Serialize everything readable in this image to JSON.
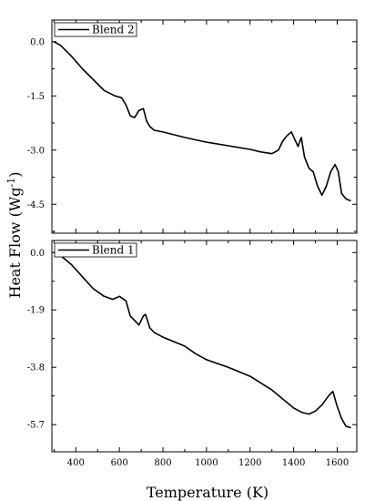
{
  "chart_data": [
    {
      "type": "line",
      "panel": "top",
      "series": [
        {
          "name": "Blend 2",
          "x": [
            300,
            330,
            380,
            430,
            480,
            530,
            580,
            610,
            630,
            650,
            670,
            690,
            710,
            725,
            740,
            760,
            800,
            900,
            1000,
            1100,
            1200,
            1250,
            1300,
            1330,
            1350,
            1370,
            1390,
            1405,
            1420,
            1435,
            1450,
            1470,
            1490,
            1510,
            1530,
            1550,
            1570,
            1590,
            1605,
            1620,
            1640,
            1660
          ],
          "y": [
            0.0,
            -0.1,
            -0.4,
            -0.75,
            -1.05,
            -1.35,
            -1.5,
            -1.55,
            -1.75,
            -2.05,
            -2.1,
            -1.9,
            -1.85,
            -2.2,
            -2.35,
            -2.45,
            -2.5,
            -2.65,
            -2.78,
            -2.88,
            -2.98,
            -3.05,
            -3.1,
            -3.0,
            -2.75,
            -2.6,
            -2.5,
            -2.7,
            -2.9,
            -2.65,
            -3.2,
            -3.5,
            -3.6,
            -4.0,
            -4.25,
            -4.0,
            -3.6,
            -3.4,
            -3.6,
            -4.2,
            -4.35,
            -4.4
          ]
        }
      ],
      "ylabel": "",
      "yticks": [
        0.0,
        -1.5,
        -3.0,
        -4.5
      ],
      "ytick_labels": [
        "0.0",
        "-1.5",
        "-3.0",
        "-4.5"
      ],
      "ylim": [
        -5.3,
        0.6
      ],
      "xlim": [
        290,
        1690
      ],
      "legend": "top-left"
    },
    {
      "type": "line",
      "panel": "bottom",
      "series": [
        {
          "name": "Blend 1",
          "x": [
            300,
            330,
            380,
            430,
            480,
            530,
            570,
            600,
            630,
            650,
            670,
            690,
            710,
            720,
            740,
            760,
            800,
            900,
            950,
            1000,
            1100,
            1200,
            1300,
            1350,
            1400,
            1440,
            1470,
            1500,
            1530,
            1560,
            1580,
            1600,
            1620,
            1640,
            1660
          ],
          "y": [
            0.0,
            -0.1,
            -0.4,
            -0.8,
            -1.2,
            -1.45,
            -1.55,
            -1.45,
            -1.6,
            -2.1,
            -2.25,
            -2.4,
            -2.1,
            -2.05,
            -2.5,
            -2.65,
            -2.8,
            -3.1,
            -3.35,
            -3.55,
            -3.8,
            -4.1,
            -4.55,
            -4.85,
            -5.15,
            -5.3,
            -5.35,
            -5.25,
            -5.05,
            -4.75,
            -4.6,
            -5.1,
            -5.5,
            -5.75,
            -5.8
          ]
        }
      ],
      "ylabel": "",
      "yticks": [
        0.0,
        -1.9,
        -3.8,
        -5.7
      ],
      "ytick_labels": [
        "0.0",
        "-1.9",
        "-3.8",
        "-5.7"
      ],
      "ylim": [
        -6.6,
        0.4
      ],
      "xticks": [
        400,
        600,
        800,
        1000,
        1200,
        1400,
        1600
      ],
      "xtick_labels": [
        "400",
        "600",
        "800",
        "1000",
        "1200",
        "1400",
        "1600"
      ],
      "xlim": [
        290,
        1690
      ],
      "xlabel": "Temperature (K)",
      "legend": "top-left"
    }
  ],
  "shared": {
    "ylabel_text": "Heat Flow (Wg",
    "ylabel_sup": "-1",
    "ylabel_close": ")",
    "line_color": "#000000",
    "background": "#ffffff"
  }
}
